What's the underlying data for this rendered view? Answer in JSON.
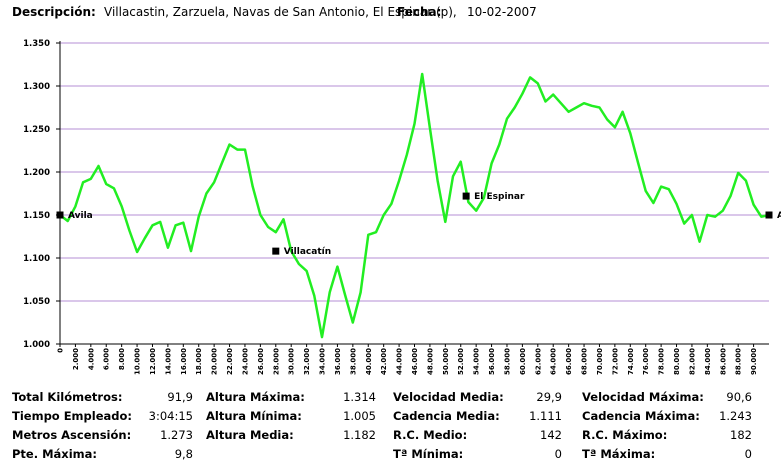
{
  "header": {
    "descripcion_label": "Descripción:",
    "descripcion_value": "Villacastin, Zarzuela, Navas de San Antonio, El Espinar (p),",
    "fecha_label": "Fecha:",
    "fecha_value": "10-02-2007"
  },
  "chart_data": {
    "type": "line",
    "title": "",
    "xlabel": "",
    "ylabel": "",
    "ylim": [
      1.0,
      1.35
    ],
    "xlim": [
      0,
      92
    ],
    "grid": true,
    "y_ticks": [
      1.0,
      1.05,
      1.1,
      1.15,
      1.2,
      1.25,
      1.3,
      1.35
    ],
    "y_tick_labels": [
      "1.000",
      "1.050",
      "1.100",
      "1.150",
      "1.200",
      "1.250",
      "1.300",
      "1.350"
    ],
    "x_tick_labels": [
      "0",
      "2.000",
      "4.000",
      "6.000",
      "8.000",
      "10.000",
      "12.000",
      "14.000",
      "16.000",
      "18.000",
      "20.000",
      "22.000",
      "24.000",
      "26.000",
      "28.000",
      "30.000",
      "32.000",
      "34.000",
      "36.000",
      "38.000",
      "40.000",
      "42.000",
      "44.000",
      "46.000",
      "48.000",
      "50.000",
      "52.000",
      "54.000",
      "56.000",
      "58.000",
      "60.000",
      "62.000",
      "64.000",
      "66.000",
      "68.000",
      "70.000",
      "72.000",
      "74.000",
      "76.000",
      "78.000",
      "80.000",
      "82.000",
      "84.000",
      "86.000",
      "88.000",
      "90.000"
    ],
    "series_color": "#22ee22",
    "series": [
      {
        "x": [
          0,
          1,
          2,
          3,
          4,
          5,
          6,
          7,
          8,
          9,
          10,
          11,
          12,
          13,
          14,
          15,
          16,
          17,
          18,
          19,
          20,
          21,
          22,
          23,
          24,
          25,
          26,
          27,
          28,
          29,
          30,
          31,
          32,
          33,
          34,
          35,
          36,
          37,
          38,
          39,
          40,
          41,
          42,
          43,
          44,
          45,
          46,
          47,
          48,
          49,
          50,
          51,
          52,
          53,
          54,
          55,
          56,
          57,
          58,
          59,
          60,
          61,
          62,
          63,
          64,
          65,
          66,
          67,
          68,
          69,
          70,
          71,
          72,
          73,
          74,
          75,
          76,
          77,
          78,
          79,
          80,
          81,
          82,
          83,
          84,
          85,
          86,
          87,
          88,
          89,
          90,
          91,
          92
        ],
        "y": [
          1.15,
          1.143,
          1.16,
          1.188,
          1.192,
          1.207,
          1.186,
          1.181,
          1.16,
          1.132,
          1.107,
          1.123,
          1.138,
          1.142,
          1.112,
          1.138,
          1.141,
          1.108,
          1.148,
          1.175,
          1.188,
          1.21,
          1.232,
          1.226,
          1.226,
          1.183,
          1.15,
          1.136,
          1.13,
          1.145,
          1.108,
          1.093,
          1.085,
          1.056,
          1.008,
          1.06,
          1.09,
          1.057,
          1.025,
          1.06,
          1.127,
          1.13,
          1.15,
          1.163,
          1.19,
          1.22,
          1.256,
          1.314,
          1.251,
          1.19,
          1.142,
          1.195,
          1.212,
          1.165,
          1.155,
          1.17,
          1.21,
          1.232,
          1.262,
          1.275,
          1.291,
          1.31,
          1.303,
          1.282,
          1.29,
          1.28,
          1.27,
          1.275,
          1.28,
          1.277,
          1.275,
          1.261,
          1.252,
          1.27,
          1.245,
          1.211,
          1.178,
          1.164,
          1.183,
          1.18,
          1.163,
          1.14,
          1.15,
          1.119,
          1.15,
          1.148,
          1.155,
          1.172,
          1.199,
          1.19,
          1.162,
          1.148,
          1.15
        ]
      }
    ],
    "annotations": [
      {
        "x": 0,
        "y": 1.15,
        "label": "Avila"
      },
      {
        "x": 28,
        "y": 1.108,
        "label": "Villacatín"
      },
      {
        "x": 52.7,
        "y": 1.172,
        "label": "El Espinar"
      },
      {
        "x": 92,
        "y": 1.15,
        "label": "Avila"
      }
    ]
  },
  "stats": [
    [
      {
        "label": "Total Kilómetros:",
        "value": "91,9"
      },
      {
        "label": "Tiempo Empleado:",
        "value": "3:04:15"
      },
      {
        "label": "Metros Ascensión:",
        "value": "1.273"
      },
      {
        "label": "Pte. Máxima:",
        "value": "9,8"
      }
    ],
    [
      {
        "label": "Altura Máxima:",
        "value": "1.314"
      },
      {
        "label": "Altura Mínima:",
        "value": "1.005"
      },
      {
        "label": "Altura Media:",
        "value": "1.182"
      }
    ],
    [
      {
        "label": "Velocidad Media:",
        "value": "29,9"
      },
      {
        "label": "Cadencia Media:",
        "value": "1.111"
      },
      {
        "label": "R.C. Medio:",
        "value": "142"
      },
      {
        "label": "Tª Mínima:",
        "value": "0"
      }
    ],
    [
      {
        "label": "Velocidad Máxima:",
        "value": "90,6"
      },
      {
        "label": "Cadencia Máxima:",
        "value": "1.243"
      },
      {
        "label": "R.C.  Máximo:",
        "value": "182"
      },
      {
        "label": "Tª Máxima:",
        "value": "0"
      }
    ]
  ]
}
